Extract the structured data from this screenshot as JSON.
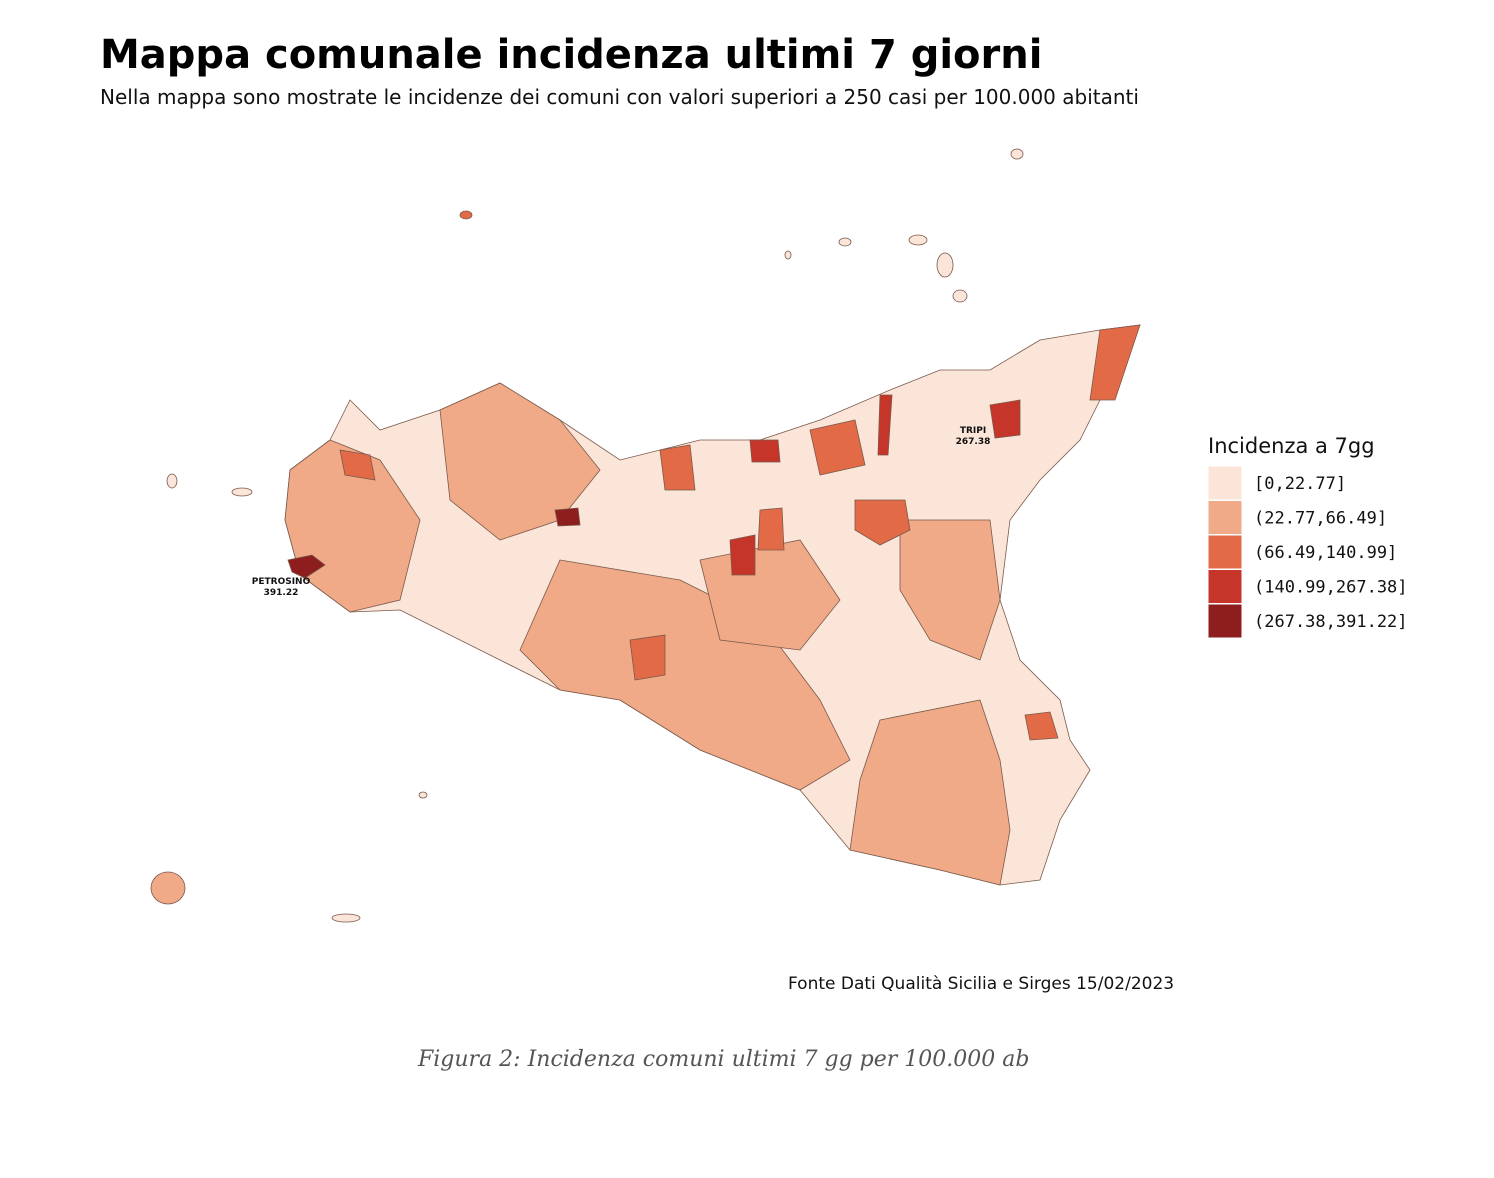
{
  "header": {
    "title": "Mappa comunale incidenza ultimi 7 giorni",
    "subtitle": "Nella mappa sono mostrate le incidenze dei comuni con valori superiori a 250 casi per 100.000 abitanti"
  },
  "legend": {
    "title": "Incidenza a 7gg",
    "items": [
      {
        "label": "[0,22.77]",
        "color": "#fbe4d8"
      },
      {
        "label": "(22.77,66.49]",
        "color": "#f0aa88"
      },
      {
        "label": "(66.49,140.99]",
        "color": "#e26a47"
      },
      {
        "label": "(140.99,267.38]",
        "color": "#c6352a"
      },
      {
        "label": "(267.38,391.22]",
        "color": "#8e1e1e"
      }
    ]
  },
  "annotations": [
    {
      "name": "PETROSINO",
      "value": 391.22
    },
    {
      "name": "TRIPI",
      "value": 267.38
    }
  ],
  "source": "Fonte Dati Qualità Sicilia e Sirges 15/02/2023",
  "caption": "Figura 2: Incidenza comuni ultimi 7 gg per 100.000 ab"
}
